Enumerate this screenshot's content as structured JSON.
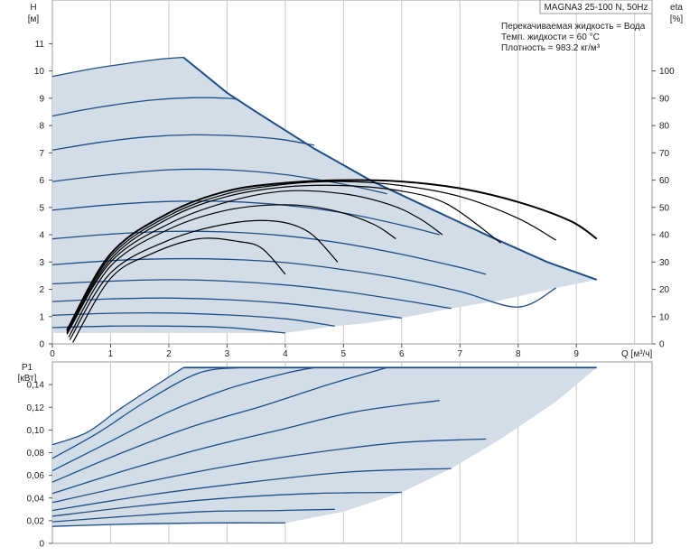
{
  "chart_data": [
    {
      "type": "line",
      "title": "MAGNA3 25-100 N, 50Hz",
      "info": [
        "Перекачиваемая жидкость = Вода",
        "Темп. жидкости = 60 °C",
        "Плотность = 983.2 кг/м³"
      ],
      "xlabel": "Q [м³/ч]",
      "ylabel": [
        "H",
        "[м]"
      ],
      "y2label": [
        "eta",
        "[%]"
      ],
      "xlim": [
        0,
        10.3
      ],
      "ylim": [
        0,
        12.6
      ],
      "y2lim": [
        0,
        126
      ],
      "xticks": [
        0,
        1,
        2,
        3,
        4,
        5,
        6,
        7,
        8,
        9
      ],
      "yticks": [
        0,
        1,
        2,
        3,
        4,
        5,
        6,
        7,
        8,
        9,
        10,
        11
      ],
      "y2ticks": [
        0,
        10,
        20,
        30,
        40,
        50,
        60,
        70,
        80,
        90,
        100
      ],
      "colors": {
        "region_fill": "#d2dde8",
        "head_curve": "#1f4e86",
        "eff_curve": "#000000",
        "grid": "#c8c8c8"
      },
      "grid": true,
      "region_outline": [
        [
          0,
          9.8
        ],
        [
          0.6,
          10.05
        ],
        [
          1.2,
          10.25
        ],
        [
          1.8,
          10.42
        ],
        [
          2.25,
          10.5
        ],
        [
          3.0,
          9.2
        ],
        [
          3.5,
          8.5
        ],
        [
          4.5,
          7.15
        ],
        [
          5.5,
          5.95
        ],
        [
          6.5,
          4.95
        ],
        [
          7.5,
          3.95
        ],
        [
          8.5,
          3.0
        ],
        [
          9.35,
          2.35
        ],
        [
          8.65,
          2.05
        ],
        [
          7.7,
          1.6
        ],
        [
          6.85,
          1.3
        ],
        [
          6.0,
          0.95
        ],
        [
          5.35,
          0.75
        ],
        [
          4.85,
          0.65
        ],
        [
          4.0,
          0.4
        ],
        [
          0,
          0.4
        ]
      ],
      "head_series": [
        [
          [
            0,
            9.8
          ],
          [
            0.6,
            10.05
          ],
          [
            1.2,
            10.25
          ],
          [
            1.8,
            10.42
          ],
          [
            2.25,
            10.5
          ]
        ],
        [
          [
            0,
            8.35
          ],
          [
            0.6,
            8.6
          ],
          [
            1.2,
            8.8
          ],
          [
            1.8,
            8.95
          ],
          [
            2.4,
            9.02
          ],
          [
            3.0,
            9.0
          ],
          [
            3.2,
            8.95
          ]
        ],
        [
          [
            0,
            7.1
          ],
          [
            0.8,
            7.38
          ],
          [
            1.6,
            7.58
          ],
          [
            2.4,
            7.66
          ],
          [
            3.2,
            7.62
          ],
          [
            3.9,
            7.5
          ],
          [
            4.5,
            7.28
          ]
        ],
        [
          [
            0,
            5.95
          ],
          [
            1.0,
            6.2
          ],
          [
            2.0,
            6.38
          ],
          [
            3.0,
            6.38
          ],
          [
            4.0,
            6.2
          ],
          [
            5.0,
            5.85
          ],
          [
            5.75,
            5.5
          ]
        ],
        [
          [
            0,
            4.9
          ],
          [
            1.0,
            5.1
          ],
          [
            2.0,
            5.22
          ],
          [
            3.0,
            5.22
          ],
          [
            4.0,
            5.08
          ],
          [
            5.0,
            4.8
          ],
          [
            6.0,
            4.35
          ],
          [
            6.65,
            4.0
          ]
        ],
        [
          [
            0,
            3.85
          ],
          [
            1.0,
            4.02
          ],
          [
            2.0,
            4.12
          ],
          [
            3.0,
            4.1
          ],
          [
            4.0,
            3.96
          ],
          [
            5.0,
            3.68
          ],
          [
            6.0,
            3.28
          ],
          [
            7.0,
            2.8
          ],
          [
            7.45,
            2.55
          ]
        ],
        [
          [
            0,
            2.9
          ],
          [
            1.0,
            3.05
          ],
          [
            2.0,
            3.12
          ],
          [
            3.0,
            3.1
          ],
          [
            4.0,
            2.98
          ],
          [
            5.0,
            2.72
          ],
          [
            6.0,
            2.38
          ],
          [
            7.0,
            1.92
          ],
          [
            8.0,
            1.35
          ],
          [
            8.65,
            2.05
          ]
        ],
        [
          [
            0,
            2.2
          ],
          [
            1.0,
            2.3
          ],
          [
            2.0,
            2.35
          ],
          [
            3.0,
            2.3
          ],
          [
            4.0,
            2.16
          ],
          [
            5.0,
            1.92
          ],
          [
            6.0,
            1.6
          ],
          [
            6.85,
            1.3
          ]
        ],
        [
          [
            0,
            1.55
          ],
          [
            1.0,
            1.65
          ],
          [
            2.0,
            1.68
          ],
          [
            3.0,
            1.62
          ],
          [
            4.0,
            1.48
          ],
          [
            5.0,
            1.24
          ],
          [
            6.0,
            0.95
          ]
        ],
        [
          [
            0,
            1.05
          ],
          [
            1.0,
            1.12
          ],
          [
            2.0,
            1.13
          ],
          [
            3.0,
            1.06
          ],
          [
            4.0,
            0.92
          ],
          [
            4.85,
            0.65
          ]
        ],
        [
          [
            0,
            0.6
          ],
          [
            1.0,
            0.65
          ],
          [
            2.0,
            0.65
          ],
          [
            3.0,
            0.6
          ],
          [
            4.0,
            0.4
          ]
        ]
      ],
      "eff_series": [
        [
          [
            0.35,
            0.5
          ],
          [
            1.0,
            24
          ],
          [
            1.7,
            33
          ],
          [
            2.5,
            38.5
          ],
          [
            3.2,
            37.5
          ],
          [
            3.6,
            35
          ],
          [
            4.0,
            25.5
          ]
        ],
        [
          [
            0.3,
            1.5
          ],
          [
            1.0,
            26
          ],
          [
            2.0,
            38
          ],
          [
            3.0,
            44
          ],
          [
            3.8,
            45
          ],
          [
            4.4,
            41
          ],
          [
            4.9,
            30
          ]
        ],
        [
          [
            0.28,
            2.5
          ],
          [
            1.0,
            28.5
          ],
          [
            2.0,
            42
          ],
          [
            3.0,
            49
          ],
          [
            4.0,
            51
          ],
          [
            4.8,
            49
          ],
          [
            5.5,
            44
          ],
          [
            5.9,
            38.5
          ]
        ],
        [
          [
            0.25,
            3.5
          ],
          [
            1.0,
            30
          ],
          [
            2.0,
            44
          ],
          [
            3.0,
            52
          ],
          [
            4.0,
            56
          ],
          [
            5.0,
            55
          ],
          [
            5.8,
            51
          ],
          [
            6.3,
            46
          ],
          [
            6.7,
            40
          ]
        ],
        [
          [
            0.25,
            4
          ],
          [
            1.0,
            31
          ],
          [
            2.0,
            46
          ],
          [
            3.0,
            54
          ],
          [
            4.0,
            57.5
          ],
          [
            5.0,
            58
          ],
          [
            6.0,
            56
          ],
          [
            6.8,
            51
          ],
          [
            7.7,
            37
          ]
        ],
        [
          [
            0.25,
            4.5
          ],
          [
            1.0,
            32
          ],
          [
            2.0,
            47
          ],
          [
            3.0,
            55
          ],
          [
            4.0,
            58.5
          ],
          [
            5.0,
            59.5
          ],
          [
            6.0,
            58
          ],
          [
            7.0,
            54
          ],
          [
            8.0,
            46
          ],
          [
            8.65,
            38
          ]
        ],
        [
          [
            0.25,
            5
          ],
          [
            1.0,
            33
          ],
          [
            2.0,
            48
          ],
          [
            3.0,
            56
          ],
          [
            4.0,
            59
          ],
          [
            5.0,
            60
          ],
          [
            6.0,
            59.5
          ],
          [
            7.0,
            57
          ],
          [
            8.0,
            52
          ],
          [
            8.9,
            45
          ],
          [
            9.35,
            38.5
          ]
        ]
      ]
    },
    {
      "type": "line",
      "xlabel": "",
      "ylabel": [
        "P1",
        "[кВт]"
      ],
      "xlim": [
        0,
        10.3
      ],
      "ylim": [
        0,
        0.16
      ],
      "yticks": [
        "0",
        "0,02",
        "0,04",
        "0,06",
        "0,08",
        "0,10",
        "0,12",
        "0,14"
      ],
      "ytick_values": [
        0,
        0.02,
        0.04,
        0.06,
        0.08,
        0.1,
        0.12,
        0.14
      ],
      "grid": true,
      "region_outline": [
        [
          0,
          0.087
        ],
        [
          0.6,
          0.098
        ],
        [
          1.2,
          0.12
        ],
        [
          2.25,
          0.155
        ],
        [
          9.35,
          0.155
        ],
        [
          8.65,
          0.125
        ],
        [
          7.7,
          0.092
        ],
        [
          6.85,
          0.066
        ],
        [
          6.0,
          0.045
        ],
        [
          5.0,
          0.028
        ],
        [
          4.0,
          0.018
        ],
        [
          0,
          0.015
        ]
      ],
      "power_series": [
        [
          [
            0,
            0.087
          ],
          [
            0.6,
            0.098
          ],
          [
            1.2,
            0.12
          ],
          [
            2.25,
            0.155
          ]
        ],
        [
          [
            0,
            0.075
          ],
          [
            0.8,
            0.098
          ],
          [
            1.6,
            0.125
          ],
          [
            2.5,
            0.15
          ],
          [
            3.2,
            0.155
          ]
        ],
        [
          [
            0,
            0.064
          ],
          [
            1.0,
            0.09
          ],
          [
            2.0,
            0.116
          ],
          [
            3.0,
            0.136
          ],
          [
            4.0,
            0.15
          ],
          [
            4.5,
            0.155
          ]
        ],
        [
          [
            0,
            0.054
          ],
          [
            1.2,
            0.08
          ],
          [
            2.4,
            0.103
          ],
          [
            3.6,
            0.121
          ],
          [
            4.8,
            0.141
          ],
          [
            5.75,
            0.155
          ]
        ],
        [
          [
            0,
            0.044
          ],
          [
            1.3,
            0.065
          ],
          [
            2.6,
            0.084
          ],
          [
            3.9,
            0.1
          ],
          [
            5.2,
            0.116
          ],
          [
            6.65,
            0.126
          ]
        ],
        [
          [
            0,
            0.036
          ],
          [
            1.5,
            0.053
          ],
          [
            3.0,
            0.068
          ],
          [
            4.5,
            0.08
          ],
          [
            6.0,
            0.089
          ],
          [
            7.45,
            0.092
          ]
        ],
        [
          [
            0,
            0.029
          ],
          [
            1.7,
            0.043
          ],
          [
            3.4,
            0.054
          ],
          [
            5.1,
            0.063
          ],
          [
            6.85,
            0.066
          ]
        ],
        [
          [
            0,
            0.024
          ],
          [
            1.5,
            0.033
          ],
          [
            3.0,
            0.04
          ],
          [
            4.5,
            0.044
          ],
          [
            6.0,
            0.045
          ]
        ],
        [
          [
            0,
            0.019
          ],
          [
            1.3,
            0.024
          ],
          [
            2.6,
            0.028
          ],
          [
            3.9,
            0.029
          ],
          [
            4.85,
            0.03
          ]
        ],
        [
          [
            0,
            0.015
          ],
          [
            1.3,
            0.017
          ],
          [
            2.6,
            0.018
          ],
          [
            4.0,
            0.018
          ]
        ]
      ]
    }
  ]
}
